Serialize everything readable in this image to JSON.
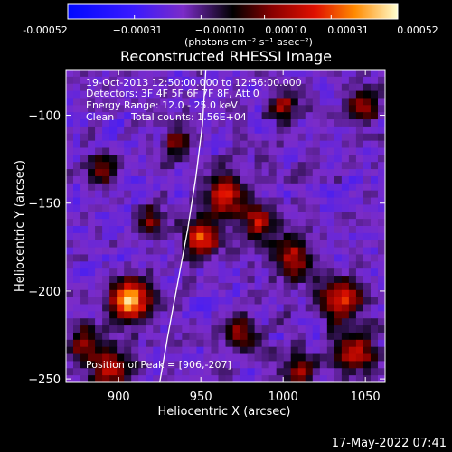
{
  "chart_data": {
    "type": "heatmap",
    "title": "Reconstructed RHESSI Image",
    "xlabel": "Heliocentric X (arcsec)",
    "ylabel": "Heliocentric Y (arcsec)",
    "xlim": [
      868,
      1062
    ],
    "ylim": [
      -252,
      -74
    ],
    "x_ticks": [
      900,
      950,
      1000,
      1050
    ],
    "y_ticks": [
      -250,
      -200,
      -150,
      -100
    ],
    "colorbar": {
      "range": [
        -0.00052,
        0.00052
      ],
      "tick_values": [
        -0.00052,
        -0.00031,
        -0.0001,
        0.0001,
        0.00031,
        0.00052
      ],
      "tick_labels": [
        "-0.00052",
        "−0.00031",
        "−0.00010",
        "0.00010",
        "0.00031",
        "0.00052"
      ],
      "unit_label": "(photons cm⁻² s⁻¹ asec⁻²)"
    },
    "annotations": {
      "time_range": "19-Oct-2013 12:50:00.000 to 12:56:00.000",
      "detectors": "Detectors: 3F 4F 5F 6F 7F 8F, Att 0",
      "energy_range": "Energy Range: 12.0 - 25.0 keV",
      "clean": "Clean",
      "total_counts": "Total counts: 1.56E+04",
      "peak": "Position of Peak = [906,-207]"
    },
    "limb_curve": [
      [
        925,
        -252
      ],
      [
        930,
        -225
      ],
      [
        936,
        -195
      ],
      [
        942,
        -165
      ],
      [
        947,
        -135
      ],
      [
        951,
        -105
      ],
      [
        953,
        -74
      ]
    ],
    "sources": [
      {
        "x": 907,
        "y": -205,
        "sigma": 8,
        "amp": 1.0
      },
      {
        "x": 950,
        "y": -170,
        "sigma": 7,
        "amp": 0.7
      },
      {
        "x": 965,
        "y": -145,
        "sigma": 8,
        "amp": 0.65
      },
      {
        "x": 985,
        "y": -160,
        "sigma": 7,
        "amp": 0.6
      },
      {
        "x": 1005,
        "y": -180,
        "sigma": 8,
        "amp": 0.55
      },
      {
        "x": 1035,
        "y": -205,
        "sigma": 9,
        "amp": 0.6
      },
      {
        "x": 1045,
        "y": -235,
        "sigma": 8,
        "amp": 0.6
      },
      {
        "x": 880,
        "y": -230,
        "sigma": 7,
        "amp": 0.5
      },
      {
        "x": 895,
        "y": -245,
        "sigma": 8,
        "amp": 0.55
      },
      {
        "x": 1050,
        "y": -95,
        "sigma": 6,
        "amp": 0.55
      },
      {
        "x": 1000,
        "y": -95,
        "sigma": 6,
        "amp": 0.45
      },
      {
        "x": 890,
        "y": -130,
        "sigma": 6,
        "amp": 0.4
      },
      {
        "x": 935,
        "y": -115,
        "sigma": 6,
        "amp": 0.45
      },
      {
        "x": 975,
        "y": -225,
        "sigma": 7,
        "amp": 0.5
      },
      {
        "x": 1010,
        "y": -245,
        "sigma": 7,
        "amp": 0.5
      },
      {
        "x": 920,
        "y": -160,
        "sigma": 6,
        "amp": 0.35
      }
    ]
  },
  "footer": {
    "timestamp": "17-May-2022 07:41"
  }
}
